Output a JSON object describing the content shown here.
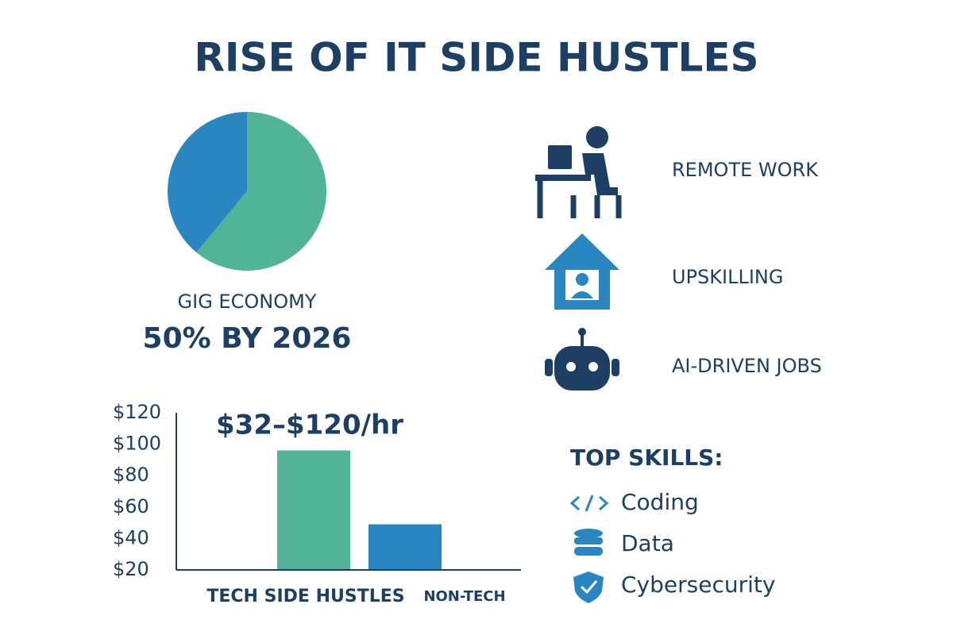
{
  "title": "RISE OF IT SIDE HUSTLES",
  "chart_data": [
    {
      "type": "pie",
      "title": "GIG ECONOMY",
      "subtitle": "50% BY 2026",
      "values": [
        61,
        39
      ],
      "colors": [
        "#52b496",
        "#2a86c1"
      ]
    },
    {
      "type": "bar",
      "annotation": "$32–$120/hr",
      "categories": [
        "TECH SIDE HUSTLES",
        "NON-TECH"
      ],
      "values": [
        96,
        49
      ],
      "colors": [
        "#52b496",
        "#2a86c1"
      ],
      "ylim": [
        20,
        120
      ],
      "yticks": [
        {
          "value": 20,
          "label": "$20"
        },
        {
          "value": 40,
          "label": "$40"
        },
        {
          "value": 60,
          "label": "$60"
        },
        {
          "value": 80,
          "label": "$80"
        },
        {
          "value": 100,
          "label": "$100"
        },
        {
          "value": 120,
          "label": "$120"
        }
      ]
    }
  ],
  "trends": [
    "REMOTE WORK",
    "UPSKILLING",
    "AI-DRIVEN JOBS"
  ],
  "skills": {
    "title": "TOP SKILLS:",
    "items": [
      "Coding",
      "Data",
      "Cybersecurity"
    ]
  }
}
